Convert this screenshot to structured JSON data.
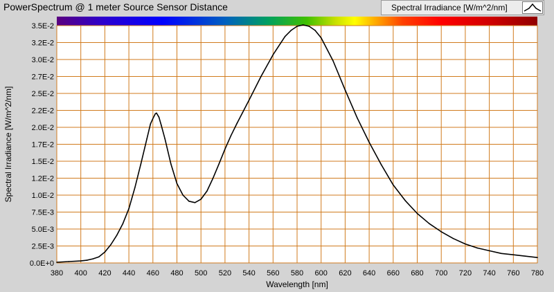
{
  "window": {
    "title": "PowerSpectrum @ 1 meter Source Sensor Distance"
  },
  "legend": {
    "series_label": "Spectral Irradiance [W/m^2/nm]",
    "icon": "line-plot-swatch-icon"
  },
  "chart_data": {
    "type": "line",
    "title": "",
    "xlabel": "Wavelength [nm]",
    "ylabel": "Spectral Irradiance [W/m^2/nm]",
    "xlim": [
      380,
      780
    ],
    "ylim": [
      0,
      0.035
    ],
    "grid": true,
    "grid_color": "#d07a1c",
    "plot_background": "#ffffff",
    "line_color": "#000000",
    "spectrum_band": true,
    "legend_position": "top-right",
    "x_ticks": [
      "380",
      "400",
      "420",
      "440",
      "460",
      "480",
      "500",
      "520",
      "540",
      "560",
      "580",
      "600",
      "620",
      "640",
      "660",
      "680",
      "700",
      "720",
      "740",
      "760",
      "780"
    ],
    "y_ticks": [
      "0.0E+0",
      "2.5E-3",
      "5.0E-3",
      "7.5E-3",
      "1.0E-2",
      "1.2E-2",
      "1.5E-2",
      "1.7E-2",
      "2.0E-2",
      "2.2E-2",
      "2.5E-2",
      "2.7E-2",
      "3.0E-2",
      "3.2E-2",
      "3.5E-2"
    ],
    "series": [
      {
        "name": "Spectral Irradiance [W/m^2/nm]",
        "x": [
          380,
          390,
          400,
          405,
          410,
          415,
          420,
          425,
          430,
          435,
          440,
          445,
          450,
          455,
          458,
          460,
          462,
          463,
          465,
          467,
          470,
          475,
          480,
          485,
          490,
          495,
          500,
          505,
          510,
          515,
          520,
          525,
          530,
          540,
          550,
          560,
          570,
          575,
          580,
          585,
          590,
          595,
          600,
          610,
          620,
          630,
          640,
          650,
          660,
          670,
          680,
          690,
          700,
          710,
          720,
          730,
          740,
          750,
          760,
          770,
          780
        ],
        "y": [
          0.0001,
          0.0002,
          0.0003,
          0.0004,
          0.0006,
          0.0009,
          0.0016,
          0.0027,
          0.0041,
          0.0058,
          0.008,
          0.0111,
          0.0146,
          0.0183,
          0.0205,
          0.0213,
          0.022,
          0.0221,
          0.0215,
          0.0203,
          0.0183,
          0.0146,
          0.0117,
          0.01,
          0.0091,
          0.0089,
          0.0094,
          0.0106,
          0.0125,
          0.0146,
          0.0168,
          0.0188,
          0.0206,
          0.024,
          0.0275,
          0.0307,
          0.0334,
          0.0343,
          0.0349,
          0.0351,
          0.0349,
          0.0343,
          0.0332,
          0.0298,
          0.0255,
          0.0214,
          0.0178,
          0.0145,
          0.0115,
          0.0092,
          0.0073,
          0.0058,
          0.0046,
          0.0036,
          0.0028,
          0.0022,
          0.0018,
          0.0014,
          0.0012,
          0.001,
          0.0008
        ]
      }
    ]
  }
}
